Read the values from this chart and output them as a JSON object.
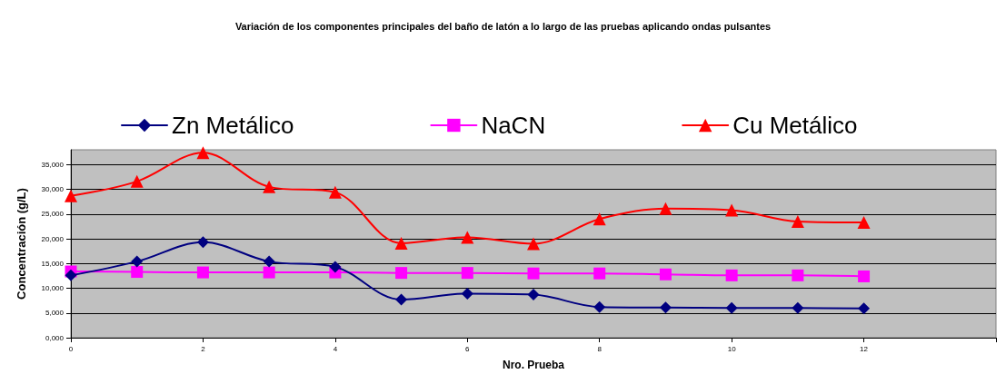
{
  "chart_data": {
    "type": "line",
    "title": "Variación de los componentes principales del baño de latón a lo largo de las pruebas aplicando ondas pulsantes",
    "xlabel": "Nro. Prueba",
    "ylabel": "Concentración (g/L)",
    "x": [
      0,
      1,
      2,
      3,
      4,
      5,
      6,
      7,
      8,
      9,
      10,
      11,
      12
    ],
    "series": [
      {
        "name": "Zn Metálico",
        "color": "#000080",
        "marker": "diamond",
        "values": [
          12600,
          15400,
          19300,
          15400,
          14300,
          7700,
          8900,
          8700,
          6200,
          6100,
          6000,
          6000,
          5900
        ]
      },
      {
        "name": "NaCN",
        "color": "#ff00ff",
        "marker": "square",
        "values": [
          13400,
          13300,
          13200,
          13200,
          13200,
          13100,
          13100,
          13000,
          13000,
          12800,
          12600,
          12600,
          12400
        ]
      },
      {
        "name": "Cu Metálico",
        "color": "#ff0000",
        "marker": "triangle",
        "values": [
          28700,
          31600,
          37400,
          30500,
          29400,
          19100,
          20300,
          19000,
          24000,
          26100,
          25800,
          23500,
          23300
        ]
      }
    ],
    "xlim": [
      0,
      14
    ],
    "xticks": [
      0,
      2,
      4,
      6,
      8,
      10,
      12,
      {
        "value": 14,
        "label": null
      }
    ],
    "ylim": [
      0,
      38000
    ],
    "yticks": [
      {
        "value": 0,
        "label": "0,000"
      },
      {
        "value": 5000,
        "label": "5,000"
      },
      {
        "value": 10000,
        "label": "10,000"
      },
      {
        "value": 15000,
        "label": "15,000"
      },
      {
        "value": 20000,
        "label": "20,000"
      },
      {
        "value": 25000,
        "label": "25,000"
      },
      {
        "value": 30000,
        "label": "30,000"
      },
      {
        "value": 35000,
        "label": "35,000"
      }
    ],
    "grid": "y",
    "legend": "top",
    "line_style": "solid"
  }
}
